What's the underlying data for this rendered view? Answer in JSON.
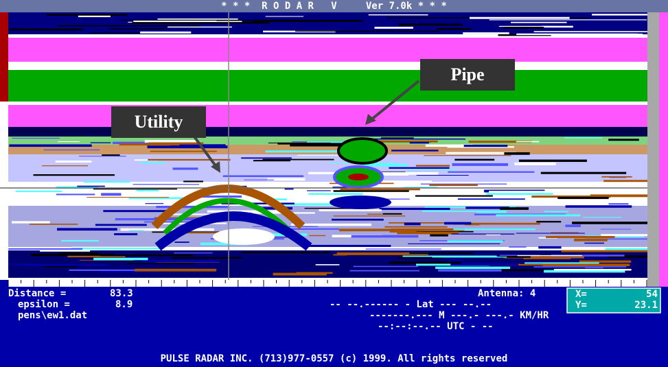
{
  "title_bar": "* * *  R O D A R   V     Ver 7.0k * * *",
  "annotations": {
    "pipe": "Pipe",
    "utility": "Utility"
  },
  "status": {
    "distance_label": "Distance =",
    "distance": "83.3",
    "epsilon_label": "epsilon =",
    "epsilon": "8.9",
    "file": "pens\\ew1.dat",
    "antenna": "Antenna: 4",
    "x_label": "X=",
    "x": "54",
    "y_label": "Y=",
    "y": "23.1",
    "lat": "-- --.------ - Lat --- --.--",
    "speed": "-------.--- M ---.- ---.- KM/HR",
    "utc": "--:--:--.-- UTC - --"
  },
  "footer": "PULSE RADAR INC. (713)977-0557 (c) 1999. All rights reserved"
}
